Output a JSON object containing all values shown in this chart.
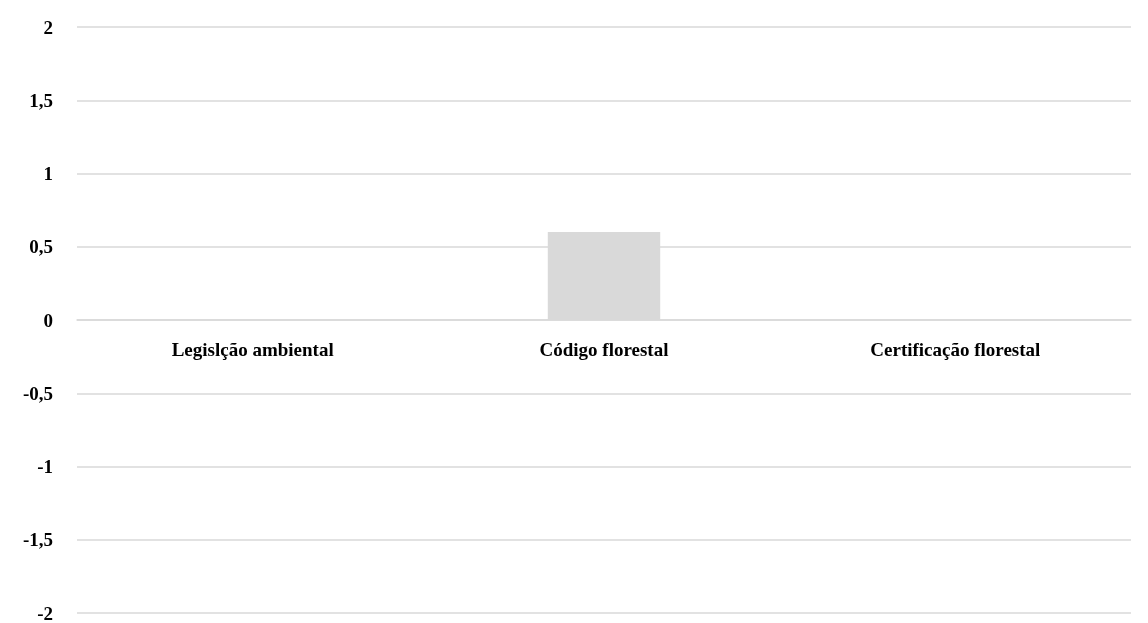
{
  "chart_data": {
    "type": "bar",
    "categories": [
      "Legislção ambiental",
      "Código florestal",
      "Certificação florestal"
    ],
    "values": [
      0,
      0.6,
      0
    ],
    "color": "#d9d9d9",
    "ylim": [
      -2,
      2
    ],
    "yticks": [
      2,
      {
        "value": 1.5,
        "label": "1,5"
      },
      1,
      {
        "value": 0.5,
        "label": "0,5"
      },
      0,
      {
        "value": -0.5,
        "label": "-0,5"
      },
      -1,
      {
        "value": -1.5,
        "label": "-1,5"
      },
      -2
    ],
    "grid": "y"
  }
}
